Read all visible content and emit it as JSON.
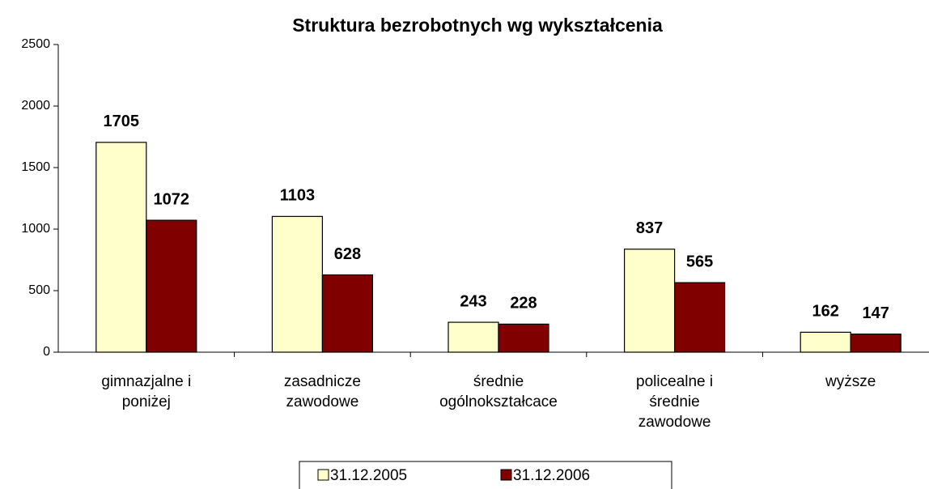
{
  "chart_data": {
    "type": "bar",
    "title": "Struktura bezrobotnych wg wykształcenia",
    "categories": [
      [
        "gimnazjalne i",
        "poniżej"
      ],
      [
        "zasadnicze",
        "zawodowe"
      ],
      [
        "średnie",
        "ogólnokształcace"
      ],
      [
        "policealne i",
        "średnie",
        "zawodowe"
      ],
      [
        "wyższe"
      ]
    ],
    "series": [
      {
        "name": "31.12.2005",
        "color": "#ffffcc",
        "values": [
          1705,
          1103,
          243,
          837,
          162
        ]
      },
      {
        "name": "31.12.2006",
        "color": "#800000",
        "values": [
          1072,
          628,
          228,
          565,
          147
        ]
      }
    ],
    "ylim": [
      0,
      2500
    ],
    "yticks": [
      0,
      500,
      1000,
      1500,
      2000,
      2500
    ]
  }
}
